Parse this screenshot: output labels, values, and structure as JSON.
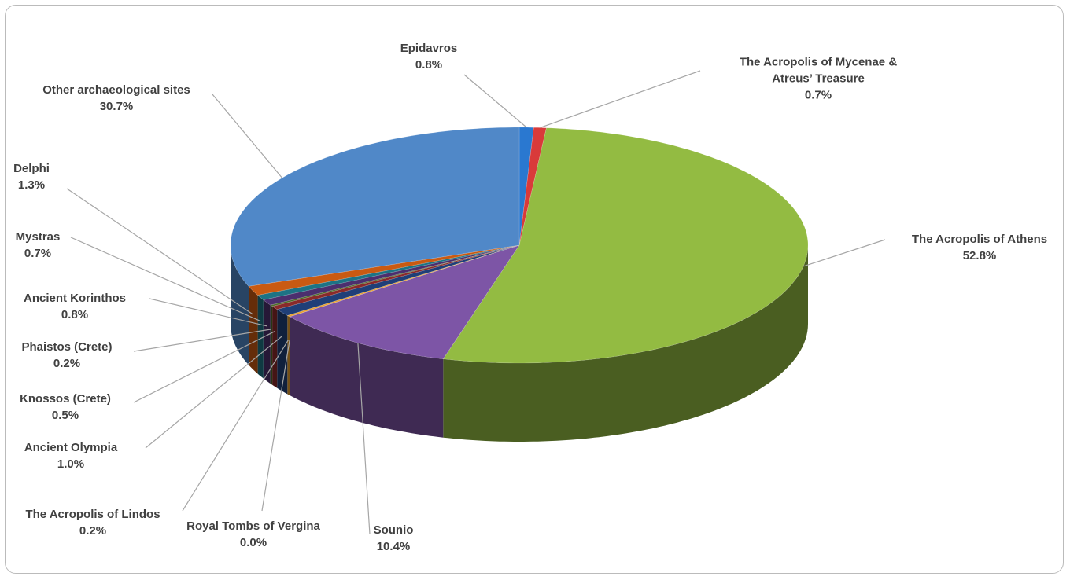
{
  "chart_data": {
    "type": "pie3d",
    "categories": [
      "Epidavros",
      "The Acropolis of Mycenae & Atreus’ Treasure",
      "The Acropolis of Athens",
      "Sounio",
      "Royal Tombs of Vergina",
      "The Acropolis of Lindos",
      "Ancient Olympia",
      "Knossos (Crete)",
      "Phaistos (Crete)",
      "Ancient Korinthos",
      "Mystras",
      "Delphi",
      "Other archaeological sites"
    ],
    "values": [
      0.8,
      0.7,
      52.8,
      10.4,
      0.0,
      0.2,
      1.0,
      0.5,
      0.2,
      0.8,
      0.7,
      1.3,
      30.7
    ],
    "value_labels": [
      "0.8%",
      "0.7%",
      "52.8%",
      "10.4%",
      "0.0%",
      "0.2%",
      "1.0%",
      "0.5%",
      "0.2%",
      "0.8%",
      "0.7%",
      "1.3%",
      "30.7%"
    ],
    "colors": [
      "#2a78d0",
      "#d93a3a",
      "#93bb42",
      "#7d55a6",
      "#2ab0d8",
      "#e8a030",
      "#1f3f78",
      "#8a2a2a",
      "#4e6b2a",
      "#4b2f6e",
      "#1d7385",
      "#c95a12",
      "#5088c8"
    ]
  }
}
